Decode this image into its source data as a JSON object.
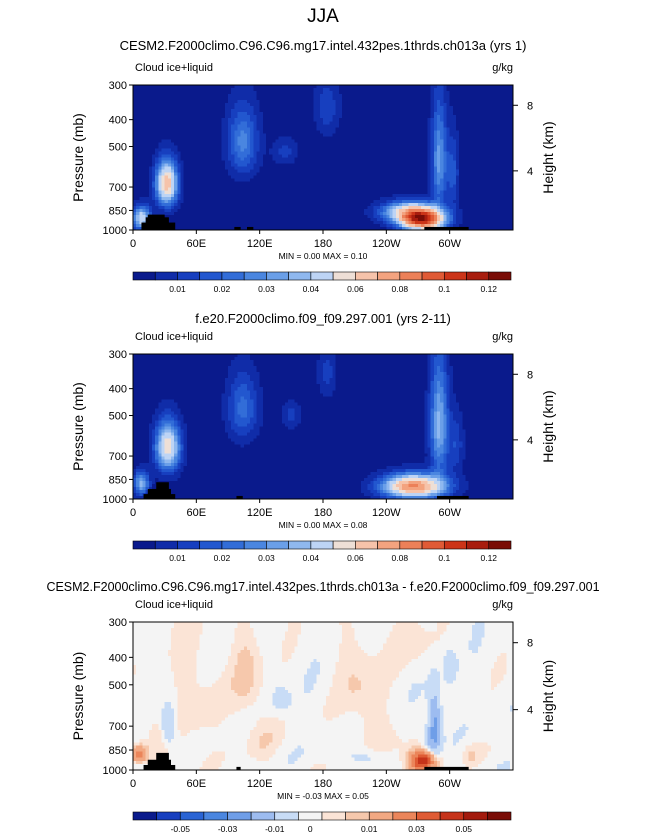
{
  "season": "JJA",
  "units_label": "g/kg",
  "chart_data": [
    {
      "type": "heatmap",
      "title": "CESM2.F2000climo.C96.C96.mg17.intel.432pes.1thrds.ch013a (yrs 1)",
      "variable": "Cloud ice+liquid",
      "units": "g/kg",
      "xlabel": "",
      "ylabel": "Pressure (mb)",
      "y2label": "Height (km)",
      "xticks": [
        "0",
        "60E",
        "120E",
        "180",
        "120W",
        "60W"
      ],
      "xtick_lons": [
        0,
        60,
        120,
        180,
        240,
        300
      ],
      "xlim": [
        0,
        360
      ],
      "yticks": [
        300,
        400,
        500,
        700,
        850,
        1000
      ],
      "ylim": [
        1000,
        300
      ],
      "y2ticks": [
        4,
        8
      ],
      "minmax_text": "MIN =   0.00  MAX =   0.10",
      "min": 0.0,
      "max": 0.1,
      "colorbar_ticks": [
        "0.01",
        "0.02",
        "0.03",
        "0.04",
        "0.06",
        "0.08",
        "0.1",
        "0.12"
      ],
      "palette": "seq",
      "features": [
        {
          "lon": 32,
          "p": 680,
          "dlon": 7,
          "dp": 85,
          "v": 0.065
        },
        {
          "lon": 8,
          "p": 905,
          "dlon": 6,
          "dp": 60,
          "v": 0.045
        },
        {
          "lon": 104,
          "p": 480,
          "dlon": 10,
          "dp": 95,
          "v": 0.025
        },
        {
          "lon": 184,
          "p": 360,
          "dlon": 8,
          "dp": 60,
          "v": 0.012
        },
        {
          "lon": 144,
          "p": 520,
          "dlon": 8,
          "dp": 40,
          "v": 0.01
        },
        {
          "lon": 274,
          "p": 920,
          "dlon": 14,
          "dp": 55,
          "v": 0.1
        },
        {
          "lon": 262,
          "p": 860,
          "dlon": 18,
          "dp": 50,
          "v": 0.05
        },
        {
          "lon": 290,
          "p": 560,
          "dlon": 5,
          "dp": 170,
          "v": 0.03
        },
        {
          "lon": 303,
          "p": 620,
          "dlon": 4,
          "dp": 130,
          "v": 0.015
        }
      ],
      "ground_blocks": [
        [
          8,
          40,
          940
        ],
        [
          12,
          34,
          900
        ],
        [
          14,
          30,
          880
        ],
        [
          96,
          102,
          975
        ],
        [
          108,
          114,
          975
        ],
        [
          276,
          318,
          975
        ]
      ]
    },
    {
      "type": "heatmap",
      "title": "f.e20.F2000climo.f09_f09.297.001 (yrs 2-11)",
      "variable": "Cloud ice+liquid",
      "units": "g/kg",
      "xlabel": "",
      "ylabel": "Pressure (mb)",
      "y2label": "Height (km)",
      "xticks": [
        "0",
        "60E",
        "120E",
        "180",
        "120W",
        "60W"
      ],
      "xtick_lons": [
        0,
        60,
        120,
        180,
        240,
        300
      ],
      "xlim": [
        0,
        360
      ],
      "yticks": [
        300,
        400,
        500,
        700,
        850,
        1000
      ],
      "ylim": [
        1000,
        300
      ],
      "y2ticks": [
        4,
        8
      ],
      "minmax_text": "MIN =   0.00  MAX =   0.08",
      "min": 0.0,
      "max": 0.08,
      "colorbar_ticks": [
        "0.01",
        "0.02",
        "0.03",
        "0.04",
        "0.06",
        "0.08",
        "0.1",
        "0.12"
      ],
      "palette": "seq",
      "features": [
        {
          "lon": 33,
          "p": 650,
          "dlon": 8,
          "dp": 90,
          "v": 0.055
        },
        {
          "lon": 8,
          "p": 880,
          "dlon": 5,
          "dp": 60,
          "v": 0.035
        },
        {
          "lon": 104,
          "p": 470,
          "dlon": 10,
          "dp": 90,
          "v": 0.02
        },
        {
          "lon": 184,
          "p": 350,
          "dlon": 6,
          "dp": 50,
          "v": 0.01
        },
        {
          "lon": 150,
          "p": 500,
          "dlon": 6,
          "dp": 40,
          "v": 0.01
        },
        {
          "lon": 266,
          "p": 900,
          "dlon": 20,
          "dp": 60,
          "v": 0.08
        },
        {
          "lon": 290,
          "p": 540,
          "dlon": 6,
          "dp": 180,
          "v": 0.035
        },
        {
          "lon": 306,
          "p": 640,
          "dlon": 5,
          "dp": 110,
          "v": 0.012
        }
      ],
      "ground_blocks": [
        [
          10,
          40,
          960
        ],
        [
          14,
          36,
          920
        ],
        [
          22,
          34,
          870
        ],
        [
          98,
          104,
          975
        ],
        [
          288,
          318,
          975
        ]
      ]
    },
    {
      "type": "heatmap",
      "title": "CESM2.F2000climo.C96.C96.mg17.intel.432pes.1thrds.ch013a - f.e20.F2000climo.f09_f09.297.001",
      "variable": "Cloud ice+liquid",
      "units": "g/kg",
      "xlabel": "",
      "ylabel": "Pressure (mb)",
      "y2label": "Height (km)",
      "xticks": [
        "0",
        "60E",
        "120E",
        "180",
        "120W",
        "60W"
      ],
      "xtick_lons": [
        0,
        60,
        120,
        180,
        240,
        300
      ],
      "xlim": [
        0,
        360
      ],
      "yticks": [
        300,
        400,
        500,
        700,
        850,
        1000
      ],
      "ylim": [
        1000,
        300
      ],
      "y2ticks": [
        4,
        8
      ],
      "minmax_text": "MIN =  -0.03  MAX =   0.05",
      "min": -0.03,
      "max": 0.05,
      "colorbar_ticks": [
        "-0.05",
        "-0.03",
        "-0.01",
        "0",
        "0.01",
        "0.03",
        "0.05"
      ],
      "palette": "div",
      "features": [
        {
          "lon": 274,
          "p": 930,
          "dlon": 8,
          "dp": 50,
          "v": 0.045
        },
        {
          "lon": 286,
          "p": 700,
          "dlon": 4,
          "dp": 120,
          "v": -0.025
        },
        {
          "lon": 6,
          "p": 880,
          "dlon": 5,
          "dp": 40,
          "v": 0.025
        },
        {
          "lon": 34,
          "p": 700,
          "dlon": 5,
          "dp": 80,
          "v": -0.015
        },
        {
          "lon": 28,
          "p": 800,
          "dlon": 10,
          "dp": 140,
          "v": 0.004
        },
        {
          "lon": 60,
          "p": 560,
          "dlon": 18,
          "dp": 200,
          "v": 0.004
        },
        {
          "lon": 108,
          "p": 440,
          "dlon": 10,
          "dp": 110,
          "v": 0.006
        },
        {
          "lon": 120,
          "p": 750,
          "dlon": 12,
          "dp": 130,
          "v": 0.004
        },
        {
          "lon": 210,
          "p": 450,
          "dlon": 14,
          "dp": 130,
          "v": 0.004
        },
        {
          "lon": 226,
          "p": 640,
          "dlon": 12,
          "dp": 130,
          "v": 0.004
        },
        {
          "lon": 264,
          "p": 880,
          "dlon": 16,
          "dp": 90,
          "v": 0.004
        },
        {
          "lon": 272,
          "p": 370,
          "dlon": 20,
          "dp": 60,
          "v": 0.003
        },
        {
          "lon": 140,
          "p": 560,
          "dlon": 6,
          "dp": 40,
          "v": -0.006
        },
        {
          "lon": 220,
          "p": 900,
          "dlon": 10,
          "dp": 40,
          "v": -0.005
        },
        {
          "lon": 300,
          "p": 430,
          "dlon": 5,
          "dp": 50,
          "v": -0.006
        },
        {
          "lon": 280,
          "p": 800,
          "dlon": 5,
          "dp": 60,
          "v": -0.008
        },
        {
          "lon": 320,
          "p": 880,
          "dlon": 6,
          "dp": 60,
          "v": 0.004
        }
      ],
      "ground_blocks": [
        [
          10,
          40,
          960
        ],
        [
          14,
          36,
          920
        ],
        [
          22,
          34,
          870
        ],
        [
          98,
          102,
          975
        ],
        [
          276,
          318,
          975
        ]
      ]
    }
  ]
}
